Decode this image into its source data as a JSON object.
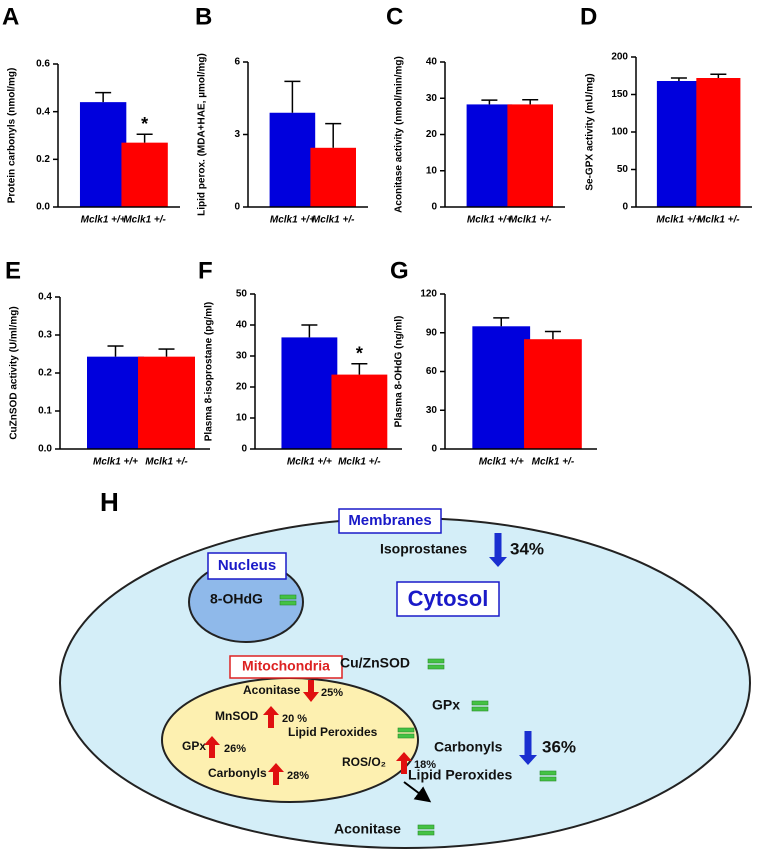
{
  "chart_data": [
    {
      "type": "bar",
      "panel": "A",
      "ylabel": "Protein carbonyls (nmol/mg)",
      "categories": [
        "Mclk1 +/+",
        "Mclk1 +/-"
      ],
      "values": [
        0.44,
        0.27
      ],
      "errors": [
        0.04,
        0.035
      ],
      "colors": [
        "#0000dd",
        "#ff0000"
      ],
      "ylim": [
        0,
        0.6
      ],
      "yticks": [
        {
          "value": 0,
          "label": "0.0"
        },
        0.2,
        0.4,
        0.6
      ],
      "grid": false,
      "annotations": [
        {
          "text": "*",
          "category": "Mclk1 +/-"
        }
      ]
    },
    {
      "type": "bar",
      "panel": "B",
      "ylabel": "Lipid perox. (MDA+HAE, µmol/mg)",
      "categories": [
        "Mclk1 +/+",
        "Mclk1 +/-"
      ],
      "values": [
        3.9,
        2.45
      ],
      "errors": [
        1.3,
        1.0
      ],
      "colors": [
        "#0000dd",
        "#ff0000"
      ],
      "ylim": [
        0,
        6
      ],
      "yticks": [
        0,
        3,
        6
      ],
      "grid": false
    },
    {
      "type": "bar",
      "panel": "C",
      "ylabel": "Aconitase activity (nmol/min/mg)",
      "categories": [
        "Mclk1 +/+",
        "Mclk1 +/-"
      ],
      "values": [
        28.3,
        28.3
      ],
      "errors": [
        1.2,
        1.3
      ],
      "colors": [
        "#0000dd",
        "#ff0000"
      ],
      "ylim": [
        0,
        40
      ],
      "yticks": [
        0,
        10,
        20,
        30,
        40
      ],
      "grid": false
    },
    {
      "type": "bar",
      "panel": "D",
      "ylabel": "Se-GPX activity (mU/mg)",
      "categories": [
        "Mclk1 +/+",
        "Mclk1 +/-"
      ],
      "values": [
        168,
        172
      ],
      "errors": [
        4,
        5
      ],
      "colors": [
        "#0000dd",
        "#ff0000"
      ],
      "ylim": [
        0,
        200
      ],
      "yticks": [
        0,
        50,
        100,
        150,
        200
      ],
      "grid": false
    },
    {
      "type": "bar",
      "panel": "E",
      "ylabel": "CuZnSOD activity (U/ml/mg)",
      "categories": [
        "Mclk1 +/+",
        "Mclk1 +/-"
      ],
      "values": [
        0.243,
        0.243
      ],
      "errors": [
        0.028,
        0.02
      ],
      "colors": [
        "#0000dd",
        "#ff0000"
      ],
      "ylim": [
        0,
        0.4
      ],
      "yticks": [
        {
          "value": 0,
          "label": "0.0"
        },
        0.1,
        0.2,
        0.3,
        0.4
      ],
      "grid": false
    },
    {
      "type": "bar",
      "panel": "F",
      "ylabel": "Plasma 8-isoprostane (pg/ml)",
      "categories": [
        "Mclk1 +/+",
        "Mclk1 +/-"
      ],
      "values": [
        36,
        24
      ],
      "errors": [
        4,
        3.5
      ],
      "colors": [
        "#0000dd",
        "#ff0000"
      ],
      "ylim": [
        0,
        50
      ],
      "yticks": [
        0,
        10,
        20,
        30,
        40,
        50
      ],
      "grid": false,
      "annotations": [
        {
          "text": "*",
          "category": "Mclk1 +/-"
        }
      ]
    },
    {
      "type": "bar",
      "panel": "G",
      "ylabel": "Plasma 8-OHdG (ng/ml)",
      "categories": [
        "Mclk1 +/+",
        "Mclk1 +/-"
      ],
      "values": [
        95,
        85
      ],
      "errors": [
        6.5,
        6
      ],
      "colors": [
        "#0000dd",
        "#ff0000"
      ],
      "ylim": [
        0,
        120
      ],
      "yticks": [
        0,
        30,
        60,
        90,
        120
      ],
      "grid": false
    }
  ],
  "diagram": {
    "panel": "H",
    "compartments": [
      "Membranes",
      "Nucleus",
      "Cytosol",
      "Mitochondria"
    ],
    "items": [
      {
        "label": "Isoprostanes",
        "change": "34%"
      },
      {
        "label": "8-OHdG"
      },
      {
        "label": "Cu/ZnSOD"
      },
      {
        "label": "GPx"
      },
      {
        "label": "Carbonyls",
        "change": "36%"
      },
      {
        "label": "Lipid Peroxides"
      },
      {
        "label": "Aconitase"
      },
      {
        "label": "Aconitase",
        "change": "25%"
      },
      {
        "label": "MnSOD",
        "change": "20 %"
      },
      {
        "label": "Lipid Peroxides"
      },
      {
        "label": "GPx",
        "change": "26%"
      },
      {
        "label": "ROS/O₂",
        "change": "18%"
      },
      {
        "label": "Carbonyls",
        "change": "28%"
      }
    ]
  }
}
